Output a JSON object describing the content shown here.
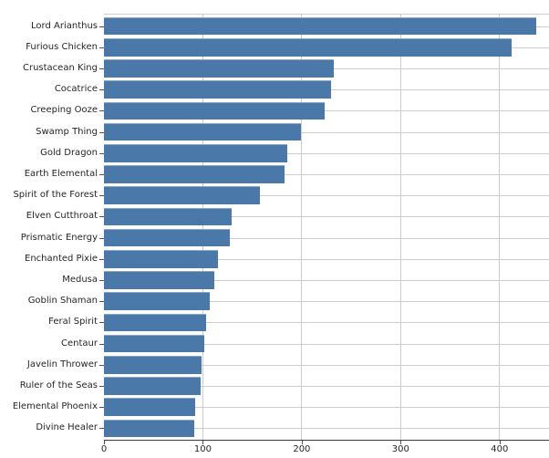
{
  "chart_data": {
    "type": "bar",
    "orientation": "horizontal",
    "title": "",
    "xlabel": "",
    "ylabel": "",
    "categories": [
      "Lord Arianthus",
      "Furious Chicken",
      "Crustacean King",
      "Cocatrice",
      "Creeping Ooze",
      "Swamp Thing",
      "Gold Dragon",
      "Earth Elemental",
      "Spirit of the Forest",
      "Elven Cutthroat",
      "Prismatic Energy",
      "Enchanted Pixie",
      "Medusa",
      "Goblin Shaman",
      "Feral Spirit",
      "Centaur",
      "Javelin Thrower",
      "Ruler of the Seas",
      "Elemental Phoenix",
      "Divine Healer"
    ],
    "values": [
      437,
      412,
      232,
      230,
      223,
      199,
      185,
      183,
      158,
      129,
      127,
      115,
      112,
      107,
      103,
      101,
      99,
      98,
      92,
      91
    ],
    "xlim": [
      0,
      450
    ],
    "x_ticks": [
      0,
      100,
      200,
      300,
      400
    ],
    "grid": true,
    "legend": "none",
    "colors": {
      "bar": "#4a78a8",
      "grid": "#cccccc",
      "spine": "#cccccc",
      "axis": "#3a3a3a",
      "tick": "#555555",
      "tick_label": "#262626"
    }
  }
}
